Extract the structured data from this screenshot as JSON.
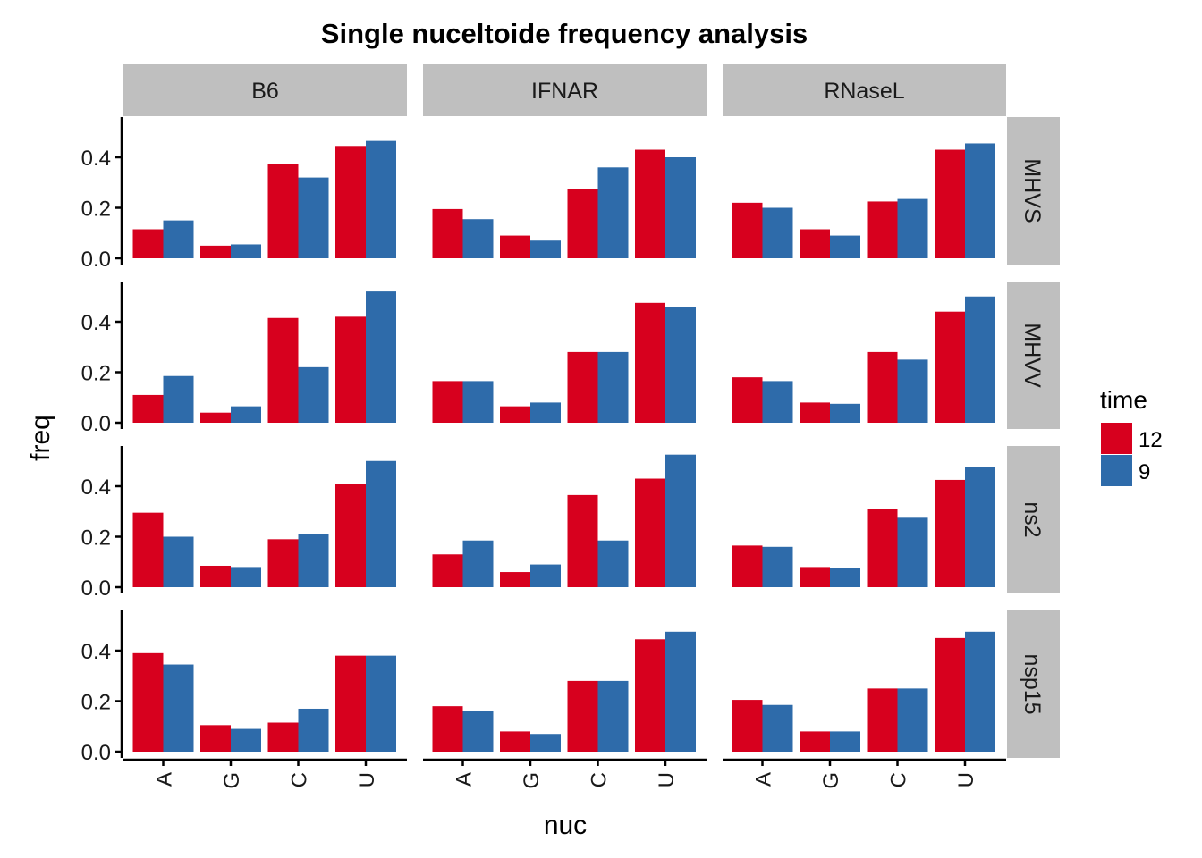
{
  "chart_data": {
    "type": "bar",
    "title": "Single nuceltoide frequency analysis",
    "xlabel": "nuc",
    "ylabel": "freq",
    "ylim": [
      0,
      0.55
    ],
    "y_ticks": [
      "0.0",
      "0.2",
      "0.4"
    ],
    "categories": [
      "A",
      "G",
      "C",
      "U"
    ],
    "facet_columns": [
      "B6",
      "IFNAR",
      "RNaseL"
    ],
    "facet_rows": [
      "MHVS",
      "MHVV",
      "ns2",
      "nsp15"
    ],
    "legend": {
      "title": "time",
      "position": "right",
      "entries": [
        {
          "label": "12",
          "color": "#D7001E"
        },
        {
          "label": "9",
          "color": "#2E6BAA"
        }
      ]
    },
    "grid": false,
    "panels": [
      {
        "row": "MHVS",
        "col": "B6",
        "series": [
          {
            "name": "12",
            "values": [
              0.115,
              0.05,
              0.375,
              0.445
            ]
          },
          {
            "name": "9",
            "values": [
              0.15,
              0.055,
              0.32,
              0.465
            ]
          }
        ]
      },
      {
        "row": "MHVS",
        "col": "IFNAR",
        "series": [
          {
            "name": "12",
            "values": [
              0.195,
              0.09,
              0.275,
              0.43
            ]
          },
          {
            "name": "9",
            "values": [
              0.155,
              0.07,
              0.36,
              0.4
            ]
          }
        ]
      },
      {
        "row": "MHVS",
        "col": "RNaseL",
        "series": [
          {
            "name": "12",
            "values": [
              0.22,
              0.115,
              0.225,
              0.43
            ]
          },
          {
            "name": "9",
            "values": [
              0.2,
              0.09,
              0.235,
              0.455
            ]
          }
        ]
      },
      {
        "row": "MHVV",
        "col": "B6",
        "series": [
          {
            "name": "12",
            "values": [
              0.11,
              0.04,
              0.415,
              0.42
            ]
          },
          {
            "name": "9",
            "values": [
              0.185,
              0.065,
              0.22,
              0.52
            ]
          }
        ]
      },
      {
        "row": "MHVV",
        "col": "IFNAR",
        "series": [
          {
            "name": "12",
            "values": [
              0.165,
              0.065,
              0.28,
              0.475
            ]
          },
          {
            "name": "9",
            "values": [
              0.165,
              0.08,
              0.28,
              0.46
            ]
          }
        ]
      },
      {
        "row": "MHVV",
        "col": "RNaseL",
        "series": [
          {
            "name": "12",
            "values": [
              0.18,
              0.08,
              0.28,
              0.44
            ]
          },
          {
            "name": "9",
            "values": [
              0.165,
              0.075,
              0.25,
              0.5
            ]
          }
        ]
      },
      {
        "row": "ns2",
        "col": "B6",
        "series": [
          {
            "name": "12",
            "values": [
              0.295,
              0.085,
              0.19,
              0.41
            ]
          },
          {
            "name": "9",
            "values": [
              0.2,
              0.08,
              0.21,
              0.5
            ]
          }
        ]
      },
      {
        "row": "ns2",
        "col": "IFNAR",
        "series": [
          {
            "name": "12",
            "values": [
              0.13,
              0.06,
              0.365,
              0.43
            ]
          },
          {
            "name": "9",
            "values": [
              0.185,
              0.09,
              0.185,
              0.525
            ]
          }
        ]
      },
      {
        "row": "ns2",
        "col": "RNaseL",
        "series": [
          {
            "name": "12",
            "values": [
              0.165,
              0.08,
              0.31,
              0.425
            ]
          },
          {
            "name": "9",
            "values": [
              0.16,
              0.075,
              0.275,
              0.475
            ]
          }
        ]
      },
      {
        "row": "nsp15",
        "col": "B6",
        "series": [
          {
            "name": "12",
            "values": [
              0.39,
              0.105,
              0.115,
              0.38
            ]
          },
          {
            "name": "9",
            "values": [
              0.345,
              0.09,
              0.17,
              0.38
            ]
          }
        ]
      },
      {
        "row": "nsp15",
        "col": "IFNAR",
        "series": [
          {
            "name": "12",
            "values": [
              0.18,
              0.08,
              0.28,
              0.445
            ]
          },
          {
            "name": "9",
            "values": [
              0.16,
              0.07,
              0.28,
              0.475
            ]
          }
        ]
      },
      {
        "row": "nsp15",
        "col": "RNaseL",
        "series": [
          {
            "name": "12",
            "values": [
              0.205,
              0.08,
              0.25,
              0.45
            ]
          },
          {
            "name": "9",
            "values": [
              0.185,
              0.08,
              0.25,
              0.475
            ]
          }
        ]
      }
    ]
  }
}
